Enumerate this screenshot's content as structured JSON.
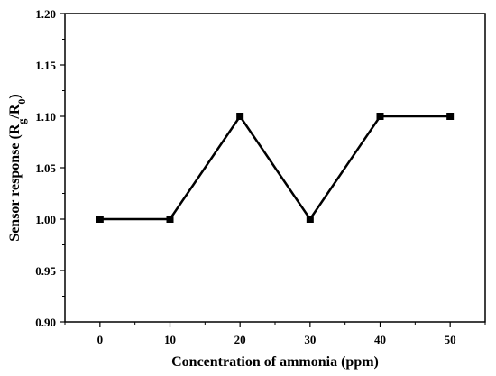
{
  "chart_data": {
    "type": "line",
    "title": "",
    "xlabel": "Concentration of ammonia (ppm)",
    "ylabel": {
      "prefix": "Sensor response (R",
      "sub1": "g",
      "mid": "/R",
      "sub2": "0",
      "suffix": ")"
    },
    "x": [
      0,
      10,
      20,
      30,
      40,
      50
    ],
    "series": [
      {
        "values": [
          1.0,
          1.0,
          1.1,
          1.0,
          1.1,
          1.1
        ]
      }
    ],
    "xlim": [
      -5,
      55
    ],
    "ylim": [
      0.9,
      1.2
    ],
    "xticks": [
      0,
      10,
      20,
      30,
      40,
      50
    ],
    "yticks": [
      0.9,
      0.95,
      1.0,
      1.05,
      1.1,
      1.15,
      1.2
    ],
    "xtick_labels": [
      "0",
      "10",
      "20",
      "30",
      "40",
      "50"
    ],
    "ytick_labels": [
      "0.90",
      "0.95",
      "1.00",
      "1.05",
      "1.10",
      "1.15",
      "1.20"
    ],
    "marker": "square",
    "color": "#000000",
    "grid": false,
    "legend": "none"
  }
}
